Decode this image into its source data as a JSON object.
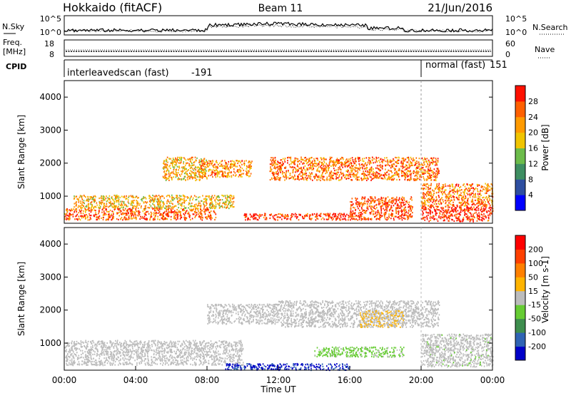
{
  "header": {
    "station": "Hokkaido (fitACF)",
    "beam": "Beam 11",
    "date": "21/Jun/2016"
  },
  "noise_panel": {
    "left_label": "N.Sky",
    "right_label": "N.Search",
    "left_ticks": [
      "10^5",
      "10^0"
    ],
    "right_ticks": [
      "10^5",
      "10^0"
    ]
  },
  "freq_panel": {
    "left_label_line1": "Freq.",
    "left_label_line2": "[MHz]",
    "right_label": "Nave",
    "left_ticks": [
      "18",
      "8"
    ],
    "right_ticks": [
      "60",
      "0"
    ]
  },
  "cpid_panel": {
    "label": "CPID",
    "segments": [
      {
        "name": "interleavedscan (fast)",
        "cpid": "-191",
        "start_hour": 0,
        "end_hour": 20
      },
      {
        "name": "normal (fast)",
        "cpid": "151",
        "start_hour": 20,
        "end_hour": 24
      }
    ]
  },
  "colors": {
    "power_scale": [
      "#0000ff",
      "#2e4ea0",
      "#3e8e62",
      "#6cbc4a",
      "#f0c400",
      "#ff9a00",
      "#ff6000",
      "#ff1000"
    ],
    "velocity_scale": [
      "#0000c8",
      "#2f64b4",
      "#3e8e4e",
      "#66cc33",
      "#bcbcbc",
      "#ffb400",
      "#ff8000",
      "#ff4000",
      "#ff0000"
    ]
  },
  "chart_data": [
    {
      "type": "heatmap",
      "name": "power",
      "ylabel": "Slant Range [km]",
      "xlabel": "",
      "xlim": [
        0,
        24
      ],
      "ylim": [
        180,
        4500
      ],
      "yticks": [
        "1000",
        "2000",
        "3000",
        "4000"
      ],
      "yticks_values": [
        1000,
        2000,
        3000,
        4000
      ],
      "colorbar_label": "Power [dB]",
      "colorbar_ticks": [
        "4",
        "8",
        "12",
        "16",
        "20",
        "24",
        "28"
      ],
      "colorbar_range": [
        0,
        32
      ],
      "regions": [
        {
          "x": [
            0.0,
            8.5
          ],
          "y": [
            300,
            650
          ],
          "value": 26
        },
        {
          "x": [
            0.5,
            9.5
          ],
          "y": [
            650,
            1050
          ],
          "value": 20
        },
        {
          "x": [
            5.5,
            8.0
          ],
          "y": [
            1500,
            2200
          ],
          "value": 21
        },
        {
          "x": [
            7.5,
            10.5
          ],
          "y": [
            1600,
            2100
          ],
          "value": 23
        },
        {
          "x": [
            11.5,
            21.0
          ],
          "y": [
            1500,
            2200
          ],
          "value": 25
        },
        {
          "x": [
            16.0,
            19.5
          ],
          "y": [
            300,
            1000
          ],
          "value": 28
        },
        {
          "x": [
            20.0,
            24.0
          ],
          "y": [
            250,
            700
          ],
          "value": 30
        },
        {
          "x": [
            20.0,
            24.0
          ],
          "y": [
            700,
            1400
          ],
          "value": 24
        },
        {
          "x": [
            10.0,
            16.0
          ],
          "y": [
            300,
            500
          ],
          "value": 30
        }
      ]
    },
    {
      "type": "heatmap",
      "name": "velocity",
      "ylabel": "Slant Range [km]",
      "xlabel": "Time UT",
      "xlim": [
        0,
        24
      ],
      "ylim": [
        180,
        4500
      ],
      "xticks": [
        "00:00",
        "04:00",
        "08:00",
        "12:00",
        "16:00",
        "20:00",
        "00:00"
      ],
      "xticks_values": [
        0,
        4,
        8,
        12,
        16,
        20,
        24
      ],
      "yticks": [
        "1000",
        "2000",
        "3000",
        "4000"
      ],
      "yticks_values": [
        1000,
        2000,
        3000,
        4000
      ],
      "colorbar_label": "Velocity [m s-1]",
      "colorbar_ticks": [
        "-200",
        "-100",
        "-50",
        "-15",
        "15",
        "50",
        "100",
        "200"
      ],
      "colorbar_range": [
        -250,
        250
      ],
      "regions": [
        {
          "x": [
            0.0,
            10.0
          ],
          "y": [
            350,
            1100
          ],
          "value": -5
        },
        {
          "x": [
            8.0,
            12.0
          ],
          "y": [
            1600,
            2200
          ],
          "value": 0
        },
        {
          "x": [
            12.0,
            21.0
          ],
          "y": [
            1500,
            2300
          ],
          "value": 5
        },
        {
          "x": [
            16.5,
            19.0
          ],
          "y": [
            1500,
            2000
          ],
          "value": 30
        },
        {
          "x": [
            20.0,
            24.0
          ],
          "y": [
            300,
            1300
          ],
          "value": -10
        },
        {
          "x": [
            9.0,
            16.0
          ],
          "y": [
            200,
            400
          ],
          "value": -200
        },
        {
          "x": [
            14.0,
            19.0
          ],
          "y": [
            600,
            900
          ],
          "value": -40
        }
      ]
    }
  ]
}
